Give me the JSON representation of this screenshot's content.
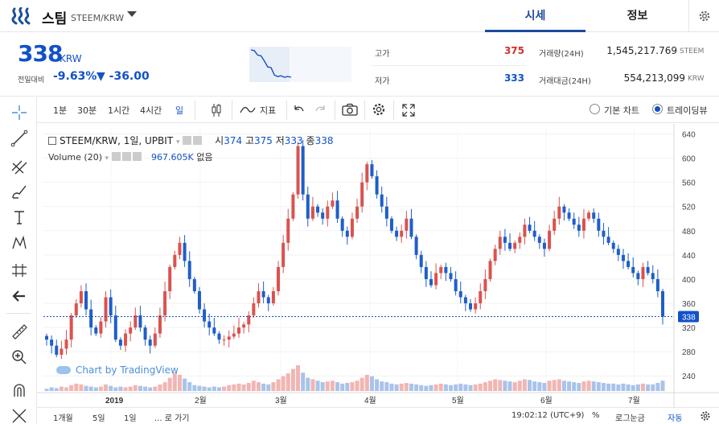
{
  "header": {
    "coin_name": "스팀",
    "pair": "STEEM/KRW",
    "tabs": [
      {
        "label": "시세"
      },
      {
        "label": "정보"
      }
    ]
  },
  "summary": {
    "price": "338",
    "unit": "KRW",
    "change_label": "전일대비",
    "change_rate": "-9.63%",
    "change_amount": "▼ -36.00",
    "high_label": "고가",
    "high_value": "375",
    "low_label": "저가",
    "low_value": "333",
    "volume_label": "거래량(24H)",
    "volume_value": "1,545,217.769",
    "volume_unit": "STEEM",
    "amount_label": "거래대금(24H)",
    "amount_value": "554,213,099",
    "amount_unit": "KRW"
  },
  "mini_chart": {
    "values": [
      375,
      374,
      368,
      367,
      360,
      352,
      351,
      341,
      339,
      340,
      338,
      339,
      338
    ]
  },
  "toolbar": {
    "intervals": [
      "1분",
      "30분",
      "1시간",
      "4시간",
      "일"
    ],
    "indicator_label": "지표",
    "basic_chart_label": "기본 차트",
    "tradingview_label": "트레이딩뷰"
  },
  "legend": {
    "symbol": "STEEM/KRW, 1일, UPBIT",
    "open_label": "시",
    "open": "374",
    "high_label": "고",
    "high": "375",
    "low_label": "저",
    "low": "333",
    "close_label": "종",
    "close": "338",
    "volume_label": "Volume (20)",
    "volume_value": "967.605K",
    "volume_none": "없음"
  },
  "watermark": "Chart by TradingView",
  "bottom_bar": {
    "ranges": [
      "1개월",
      "5일",
      "1일"
    ],
    "goto": "... 로 가기",
    "time": "19:02:12 (UTC+9)",
    "percent": "%",
    "log": "로그눈금",
    "auto": "자동"
  },
  "chart_data": {
    "type": "candlestick",
    "y_ticks": [
      240,
      280,
      320,
      360,
      400,
      440,
      480,
      520,
      560,
      600,
      640
    ],
    "x_labels": [
      "2019",
      "2월",
      "3월",
      "4월",
      "5월",
      "6월",
      "7월"
    ],
    "last_price_label": "338",
    "closes": [
      300,
      290,
      275,
      285,
      300,
      340,
      360,
      380,
      350,
      320,
      310,
      330,
      370,
      340,
      300,
      290,
      310,
      320,
      340,
      320,
      300,
      290,
      310,
      340,
      380,
      420,
      440,
      460,
      430,
      400,
      380,
      350,
      330,
      320,
      310,
      300,
      300,
      305,
      310,
      320,
      325,
      340,
      360,
      380,
      370,
      360,
      380,
      420,
      460,
      500,
      540,
      620,
      540,
      500,
      520,
      510,
      500,
      520,
      530,
      500,
      480,
      470,
      500,
      520,
      560,
      590,
      570,
      540,
      520,
      500,
      480,
      470,
      480,
      500,
      470,
      440,
      420,
      400,
      390,
      410,
      420,
      410,
      400,
      380,
      370,
      360,
      350,
      360,
      380,
      400,
      430,
      450,
      470,
      460,
      450,
      460,
      470,
      490,
      480,
      470,
      460,
      450,
      480,
      500,
      520,
      510,
      500,
      490,
      480,
      500,
      510,
      500,
      480,
      470,
      460,
      450,
      440,
      430,
      420,
      410,
      400,
      420,
      410,
      400,
      380,
      338
    ],
    "volumes": [
      3,
      5,
      4,
      6,
      5,
      8,
      10,
      9,
      7,
      6,
      5,
      6,
      9,
      7,
      5,
      6,
      5,
      6,
      8,
      7,
      6,
      5,
      6,
      9,
      12,
      18,
      25,
      22,
      17,
      12,
      8,
      7,
      6,
      5,
      6,
      5,
      6,
      8,
      9,
      10,
      9,
      11,
      14,
      12,
      10,
      9,
      12,
      16,
      20,
      24,
      30,
      35,
      25,
      18,
      16,
      14,
      12,
      13,
      14,
      12,
      10,
      11,
      12,
      14,
      18,
      22,
      20,
      16,
      13,
      12,
      10,
      9,
      10,
      11,
      10,
      9,
      8,
      7,
      8,
      9,
      10,
      9,
      8,
      9,
      10,
      9,
      8,
      9,
      10,
      12,
      14,
      16,
      15,
      14,
      13,
      12,
      14,
      16,
      15,
      13,
      12,
      11,
      14,
      15,
      16,
      14,
      13,
      12,
      11,
      13,
      14,
      13,
      12,
      11,
      10,
      10,
      9,
      10,
      9,
      8,
      9,
      10,
      9,
      9,
      11,
      14
    ]
  }
}
